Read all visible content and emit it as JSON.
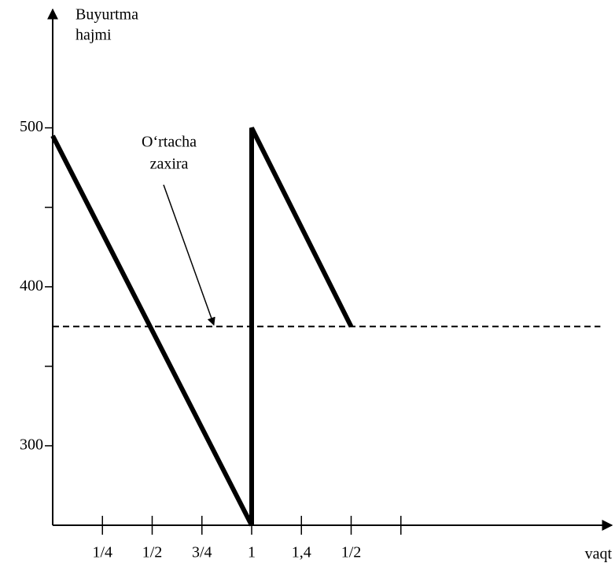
{
  "chart_data": {
    "type": "line",
    "y_label": [
      "Buyurtma",
      "hajmi"
    ],
    "x_label": "vaqt",
    "x": [
      0,
      1,
      1,
      1.5
    ],
    "series": [
      {
        "values": [
          495,
          250,
          500,
          375
        ],
        "color": "#000000"
      }
    ],
    "reference_line": {
      "value": 375,
      "style": "dashed"
    },
    "annotation": {
      "lines": [
        "O‘rtacha",
        "zaxira"
      ],
      "x": 0.81,
      "y": 375
    },
    "xlim": [
      0,
      2.8
    ],
    "ylim": [
      250,
      573
    ],
    "xticks": [
      {
        "value": 0.25,
        "label": "1/4"
      },
      {
        "value": 0.5,
        "label": "1/2"
      },
      {
        "value": 0.75,
        "label": "3/4"
      },
      1,
      {
        "value": 1.25,
        "label": "1,4"
      },
      {
        "value": 1.5,
        "label": "1/2"
      },
      {
        "value": 1.75,
        "label": null
      }
    ],
    "yticks": [
      300,
      {
        "value": 350,
        "label": null
      },
      400,
      {
        "value": 450,
        "label": null
      },
      500
    ]
  }
}
